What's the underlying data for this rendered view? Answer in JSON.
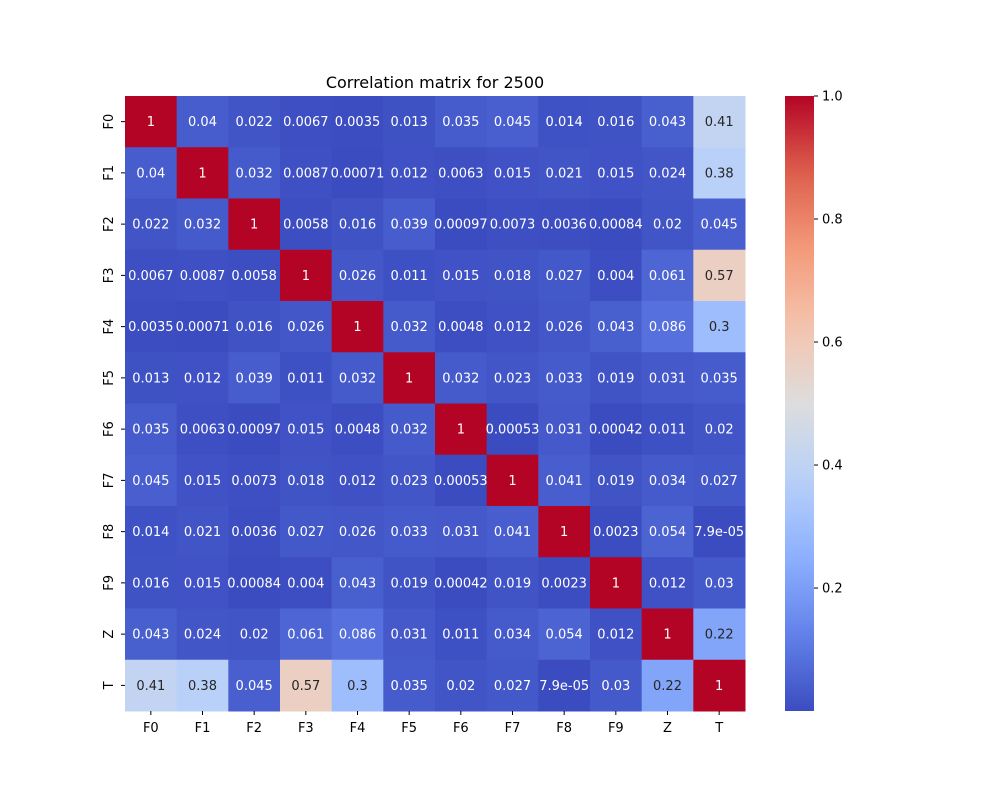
{
  "chart_data": {
    "type": "heatmap",
    "title": "Correlation matrix for 2500",
    "xlabel": "",
    "ylabel": "",
    "x_labels": [
      "F0",
      "F1",
      "F2",
      "F3",
      "F4",
      "F5",
      "F6",
      "F7",
      "F8",
      "F9",
      "Z",
      "T"
    ],
    "y_labels": [
      "F0",
      "F1",
      "F2",
      "F3",
      "F4",
      "F5",
      "F6",
      "F7",
      "F8",
      "F9",
      "Z",
      "T"
    ],
    "annotations": [
      [
        "1",
        "0.04",
        "0.022",
        "0.0067",
        "0.0035",
        "0.013",
        "0.035",
        "0.045",
        "0.014",
        "0.016",
        "0.043",
        "0.41"
      ],
      [
        "0.04",
        "1",
        "0.032",
        "0.0087",
        "0.00071",
        "0.012",
        "0.0063",
        "0.015",
        "0.021",
        "0.015",
        "0.024",
        "0.38"
      ],
      [
        "0.022",
        "0.032",
        "1",
        "0.0058",
        "0.016",
        "0.039",
        "0.00097",
        "0.0073",
        "0.0036",
        "0.00084",
        "0.02",
        "0.045"
      ],
      [
        "0.0067",
        "0.0087",
        "0.0058",
        "1",
        "0.026",
        "0.011",
        "0.015",
        "0.018",
        "0.027",
        "0.004",
        "0.061",
        "0.57"
      ],
      [
        "0.0035",
        "0.00071",
        "0.016",
        "0.026",
        "1",
        "0.032",
        "0.0048",
        "0.012",
        "0.026",
        "0.043",
        "0.086",
        "0.3"
      ],
      [
        "0.013",
        "0.012",
        "0.039",
        "0.011",
        "0.032",
        "1",
        "0.032",
        "0.023",
        "0.033",
        "0.019",
        "0.031",
        "0.035"
      ],
      [
        "0.035",
        "0.0063",
        "0.00097",
        "0.015",
        "0.0048",
        "0.032",
        "1",
        "0.00053",
        "0.031",
        "0.00042",
        "0.011",
        "0.02"
      ],
      [
        "0.045",
        "0.015",
        "0.0073",
        "0.018",
        "0.012",
        "0.023",
        "0.00053",
        "1",
        "0.041",
        "0.019",
        "0.034",
        "0.027"
      ],
      [
        "0.014",
        "0.021",
        "0.0036",
        "0.027",
        "0.026",
        "0.033",
        "0.031",
        "0.041",
        "1",
        "0.0023",
        "0.054",
        "7.9e-05"
      ],
      [
        "0.016",
        "0.015",
        "0.00084",
        "0.004",
        "0.043",
        "0.019",
        "0.00042",
        "0.019",
        "0.0023",
        "1",
        "0.012",
        "0.03"
      ],
      [
        "0.043",
        "0.024",
        "0.02",
        "0.061",
        "0.086",
        "0.031",
        "0.011",
        "0.034",
        "0.054",
        "0.012",
        "1",
        "0.22"
      ],
      [
        "0.41",
        "0.38",
        "0.045",
        "0.57",
        "0.3",
        "0.035",
        "0.02",
        "0.027",
        "7.9e-05",
        "0.03",
        "0.22",
        "1"
      ]
    ],
    "colorbar": {
      "colormap": "coolwarm",
      "vmin": 7.9e-05,
      "vmax": 1.0,
      "ticks": [
        0.2,
        0.4,
        0.6,
        0.8,
        1.0
      ],
      "tick_labels": [
        "0.2",
        "0.4",
        "0.6",
        "0.8",
        "1.0"
      ]
    },
    "grid": false,
    "legend": "none"
  }
}
